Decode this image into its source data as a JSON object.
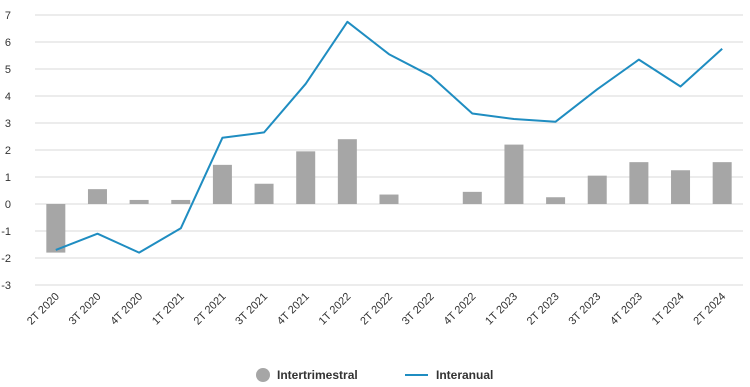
{
  "chart_data": {
    "type": "bar",
    "categories": [
      "2T 2020",
      "3T 2020",
      "4T 2020",
      "1T 2021",
      "2T 2021",
      "3T 2021",
      "4T 2021",
      "1T 2022",
      "2T 2022",
      "3T 2022",
      "4T 2022",
      "1T 2023",
      "2T 2023",
      "3T 2023",
      "4T 2023",
      "1T 2024",
      "2T 2024"
    ],
    "series": [
      {
        "name": "Intertrimestral",
        "kind": "bar",
        "color": "#a6a6a6",
        "values": [
          -1.8,
          0.55,
          0.15,
          0.15,
          1.45,
          0.75,
          1.95,
          2.4,
          0.35,
          null,
          0.45,
          2.2,
          0.25,
          1.05,
          1.55,
          1.25,
          1.55
        ]
      },
      {
        "name": "Interanual",
        "kind": "line",
        "color": "#1f8dc1",
        "values": [
          -1.7,
          -1.1,
          -1.8,
          -0.9,
          2.45,
          2.65,
          4.45,
          6.75,
          5.55,
          4.75,
          3.35,
          3.15,
          3.05,
          4.25,
          5.35,
          4.35,
          5.75
        ]
      }
    ],
    "ylim": [
      -3,
      7
    ],
    "yticks": [
      -3,
      -2,
      -1,
      0,
      1,
      2,
      3,
      4,
      5,
      6,
      7
    ],
    "grid": true,
    "legend_position": "bottom-center",
    "title": "",
    "xlabel": "",
    "ylabel": ""
  }
}
